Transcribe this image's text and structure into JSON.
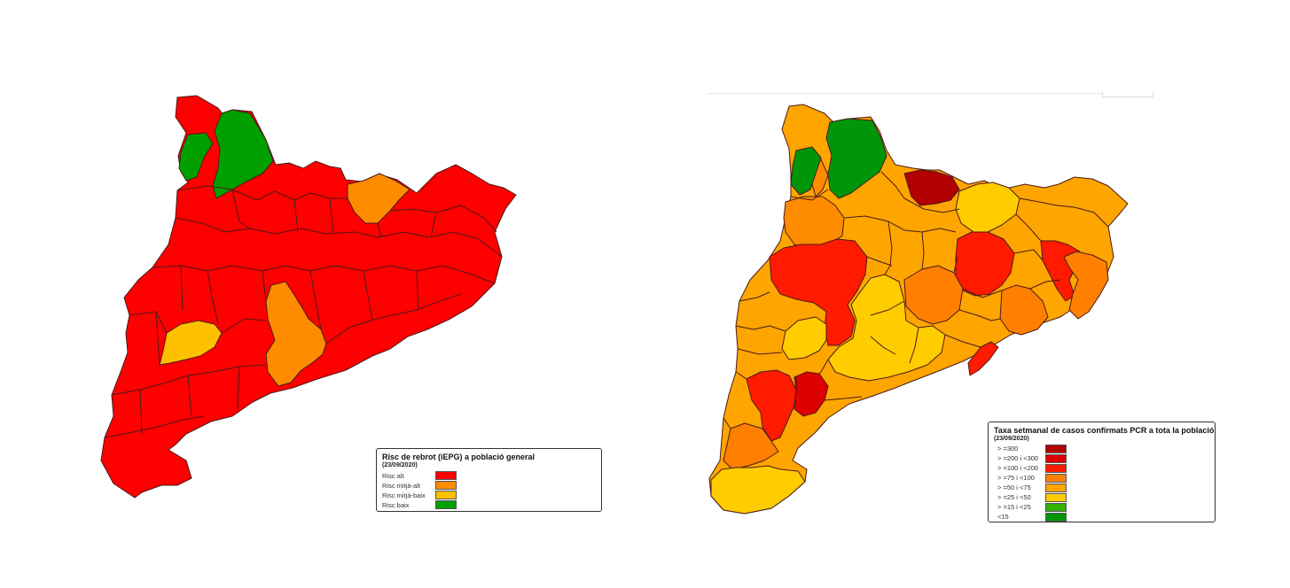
{
  "maps": [
    {
      "legend": {
        "title": "Risc de rebrot (iEPG) a població general",
        "date": "(23/09/2020)",
        "items": [
          {
            "label": "Risc alt",
            "color": "#ff0000"
          },
          {
            "label": "Risc mitjà-alt",
            "color": "#ff8c00"
          },
          {
            "label": "Risc mitjà-baix",
            "color": "#ffc000"
          },
          {
            "label": "Risc baix",
            "color": "#00a000"
          }
        ]
      }
    },
    {
      "legend": {
        "title": "Taxa setmanal de casos confirmats PCR a tota la població",
        "date": "(23/09/2020)",
        "items": [
          {
            "label": "> =300",
            "color": "#b30000"
          },
          {
            "label": "> =200 i <300",
            "color": "#dd0000"
          },
          {
            "label": "> =100 i <200",
            "color": "#ff1a00"
          },
          {
            "label": "> =75 i <100",
            "color": "#ff8000"
          },
          {
            "label": "> =50 i <75",
            "color": "#ffa500"
          },
          {
            "label": "> =25 i <50",
            "color": "#ffcc00"
          },
          {
            "label": "> =15 i <25",
            "color": "#33b000"
          },
          {
            "label": "<15",
            "color": "#00960a"
          }
        ]
      }
    }
  ]
}
